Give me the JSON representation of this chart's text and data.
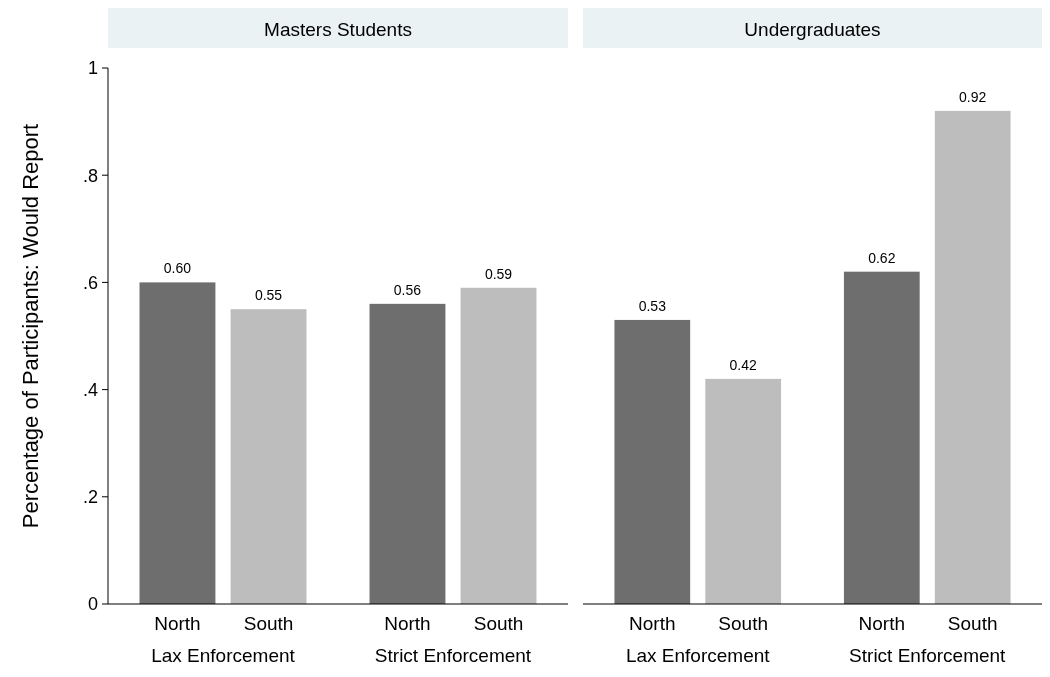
{
  "chart_data": [
    {
      "type": "bar",
      "title": "Masters Students",
      "ylabel": "Percentage of Participants: Would Report",
      "categories": [
        "Lax Enforcement",
        "Strict Enforcement"
      ],
      "ylim": [
        0,
        1
      ],
      "yticks": [
        0,
        {
          "value": 0.2,
          "label": ".2"
        },
        {
          "value": 0.4,
          "label": ".4"
        },
        {
          "value": 0.6,
          "label": ".6"
        },
        {
          "value": 0.8,
          "label": ".8"
        },
        1
      ],
      "series": [
        {
          "name": "North",
          "color": "#6e6e6e",
          "values": [
            0.6,
            0.56
          ],
          "value_labels": [
            "0.60",
            "0.56"
          ]
        },
        {
          "name": "South",
          "color": "#bdbdbd",
          "values": [
            0.55,
            0.59
          ],
          "value_labels": [
            "0.55",
            "0.59"
          ]
        }
      ]
    },
    {
      "type": "bar",
      "title": "Undergraduates",
      "categories": [
        "Lax Enforcement",
        "Strict Enforcement"
      ],
      "ylim": [
        0,
        1
      ],
      "tick_labels": "x",
      "series": [
        {
          "name": "North",
          "color": "#6e6e6e",
          "values": [
            0.53,
            0.62
          ],
          "value_labels": [
            "0.53",
            "0.62"
          ]
        },
        {
          "name": "South",
          "color": "#bdbdbd",
          "values": [
            0.42,
            0.92
          ],
          "value_labels": [
            "0.42",
            "0.92"
          ]
        }
      ]
    }
  ]
}
